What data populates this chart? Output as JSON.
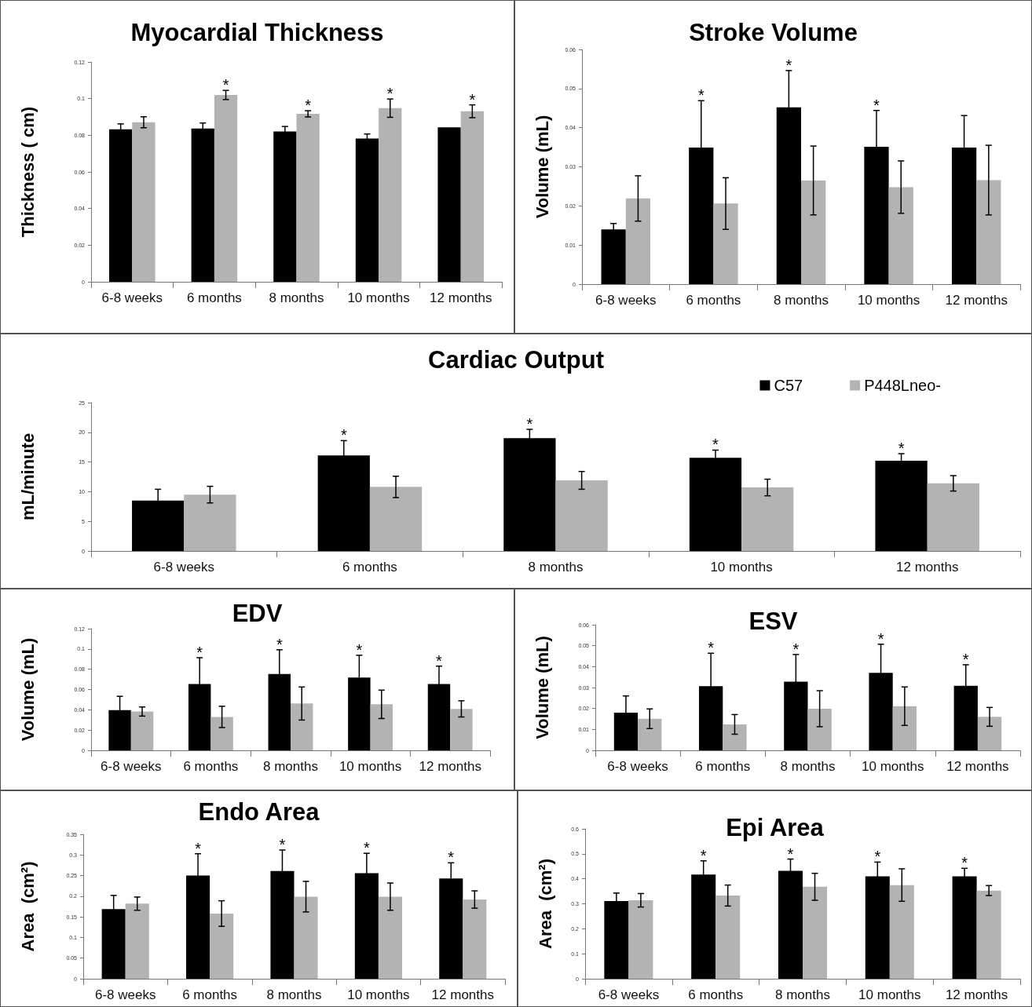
{
  "chart_data": [
    {
      "type": "bar",
      "title": "Myocardial Thickness",
      "ylabel": "Thickness ( cm)",
      "categories": [
        "6-8 weeks",
        "6 months",
        "8 months",
        "10 months",
        "12 months"
      ],
      "ylim": [
        0,
        0.12
      ],
      "yticks": [
        0,
        0.02,
        0.04,
        0.06,
        0.08,
        0.1,
        0.12
      ],
      "series": [
        {
          "color": "#000000",
          "values": [
            0.0832,
            0.0837,
            0.0821,
            0.0782,
            0.0843
          ],
          "errors": [
            0.003,
            0.003,
            0.0027,
            0.0025,
            null
          ]
        },
        {
          "color": "#b3b3b3",
          "values": [
            0.0871,
            0.102,
            0.0917,
            0.0948,
            0.0931
          ],
          "errors": [
            0.003,
            0.0025,
            0.0017,
            0.005,
            0.0035
          ]
        }
      ],
      "annotations": [
        {
          "text": "*",
          "x": "6 months",
          "y": 0.102
        },
        {
          "text": "*",
          "x": "8 months",
          "y": 0.0917
        },
        {
          "text": "*",
          "x": "10 months",
          "y": 0.0948
        },
        {
          "text": "*",
          "x": "12 months",
          "y": 0.0931
        }
      ]
    },
    {
      "type": "bar",
      "title": "Stroke Volume",
      "ylabel": "Volume (mL)",
      "categories": [
        "6-8 weeks",
        "6 months",
        "8 months",
        "10 months",
        "12 months"
      ],
      "ylim": [
        0,
        0.06
      ],
      "yticks": [
        0,
        0.01,
        0.02,
        0.03,
        0.04,
        0.05,
        0.06
      ],
      "series": [
        {
          "color": "#000000",
          "values": [
            0.014,
            0.0349,
            0.0452,
            0.0351,
            0.0349
          ],
          "errors": [
            0.0015,
            0.012,
            0.0094,
            0.0093,
            0.0082
          ]
        },
        {
          "color": "#b3b3b3",
          "values": [
            0.0219,
            0.0206,
            0.0265,
            0.0248,
            0.0266
          ],
          "errors": [
            0.0058,
            0.0066,
            0.0088,
            0.0067,
            0.0089
          ]
        }
      ],
      "annotations": [
        {
          "text": "*",
          "x": "6 months",
          "y": 0.0349
        },
        {
          "text": "*",
          "x": "8 months",
          "y": 0.0452
        },
        {
          "text": "*",
          "x": "10 months",
          "y": 0.0351
        }
      ]
    },
    {
      "type": "bar",
      "title": "Cardiac Output",
      "ylabel": "mL/minute",
      "categories": [
        "6-8 weeks",
        "6 months",
        "8 months",
        "10 months",
        "12 months"
      ],
      "ylim": [
        0,
        25
      ],
      "yticks": [
        0,
        5,
        10,
        15,
        20,
        25
      ],
      "legend": "top right",
      "series": [
        {
          "name": "C57",
          "color": "#000000",
          "values": [
            8.5,
            16.1,
            19.0,
            15.7,
            15.2
          ],
          "errors": [
            1.9,
            2.5,
            1.5,
            1.3,
            1.2
          ]
        },
        {
          "name": "P448Lneo-",
          "color": "#b3b3b3",
          "values": [
            9.5,
            10.8,
            11.9,
            10.7,
            11.4
          ],
          "errors": [
            1.4,
            1.8,
            1.5,
            1.4,
            1.3
          ]
        }
      ],
      "annotations": [
        {
          "text": "*",
          "x": "6 months",
          "y": 16.1
        },
        {
          "text": "*",
          "x": "8 months",
          "y": 19.0
        },
        {
          "text": "*",
          "x": "10 months",
          "y": 15.7
        },
        {
          "text": "*",
          "x": "12 months",
          "y": 15.2
        }
      ]
    },
    {
      "type": "bar",
      "title": "EDV",
      "ylabel": "Volume (mL)",
      "categories": [
        "6-8 weeks",
        "6 months",
        "8 months",
        "10 months",
        "12 months"
      ],
      "ylim": [
        0,
        0.12
      ],
      "yticks": [
        0,
        0.02,
        0.04,
        0.06,
        0.08,
        0.1,
        0.12
      ],
      "series": [
        {
          "color": "#000000",
          "values": [
            0.0396,
            0.0654,
            0.0752,
            0.0718,
            0.0654
          ],
          "errors": [
            0.0137,
            0.026,
            0.024,
            0.022,
            0.0177
          ]
        },
        {
          "color": "#b3b3b3",
          "values": [
            0.0383,
            0.033,
            0.0462,
            0.0454,
            0.0409
          ],
          "errors": [
            0.0045,
            0.0105,
            0.0163,
            0.014,
            0.008
          ]
        }
      ],
      "annotations": [
        {
          "text": "*",
          "x": "6 months",
          "y": 0.0654
        },
        {
          "text": "*",
          "x": "8 months",
          "y": 0.0752
        },
        {
          "text": "*",
          "x": "10 months",
          "y": 0.0718
        },
        {
          "text": "*",
          "x": "12 months",
          "y": 0.0654
        }
      ]
    },
    {
      "type": "bar",
      "title": "ESV",
      "ylabel": "Volume (mL)",
      "categories": [
        "6-8 weeks",
        "6 months",
        "8 months",
        "10 months",
        "12 months"
      ],
      "ylim": [
        0,
        0.06
      ],
      "yticks": [
        0,
        0.01,
        0.02,
        0.03,
        0.04,
        0.05,
        0.06
      ],
      "series": [
        {
          "color": "#000000",
          "values": [
            0.018,
            0.0307,
            0.0328,
            0.037,
            0.0308
          ],
          "errors": [
            0.008,
            0.0157,
            0.013,
            0.0137,
            0.0101
          ]
        },
        {
          "color": "#b3b3b3",
          "values": [
            0.0151,
            0.0124,
            0.0199,
            0.0211,
            0.016
          ],
          "errors": [
            0.0047,
            0.0047,
            0.0086,
            0.0092,
            0.0045
          ]
        }
      ],
      "annotations": [
        {
          "text": "*",
          "x": "6 months",
          "y": 0.0307
        },
        {
          "text": "*",
          "x": "8 months",
          "y": 0.0328
        },
        {
          "text": "*",
          "x": "10 months",
          "y": 0.037
        },
        {
          "text": "*",
          "x": "12 months",
          "y": 0.0308
        }
      ]
    },
    {
      "type": "bar",
      "title": "Endo Area",
      "ylabel": "Area  (cm²)",
      "categories": [
        "6-8 weeks",
        "6 months",
        "8 months",
        "10 months",
        "12 months"
      ],
      "ylim": [
        0,
        0.35
      ],
      "yticks": [
        0,
        0.05,
        0.1,
        0.15,
        0.2,
        0.25,
        0.3,
        0.35
      ],
      "series": [
        {
          "color": "#000000",
          "values": [
            0.169,
            0.25,
            0.261,
            0.256,
            0.243
          ],
          "errors": [
            0.033,
            0.053,
            0.051,
            0.048,
            0.038
          ]
        },
        {
          "color": "#b3b3b3",
          "values": [
            0.182,
            0.158,
            0.199,
            0.199,
            0.192
          ],
          "errors": [
            0.016,
            0.031,
            0.037,
            0.033,
            0.021
          ]
        }
      ],
      "annotations": [
        {
          "text": "*",
          "x": "6 months",
          "y": 0.25
        },
        {
          "text": "*",
          "x": "8 months",
          "y": 0.261
        },
        {
          "text": "*",
          "x": "10 months",
          "y": 0.256
        },
        {
          "text": "*",
          "x": "12 months",
          "y": 0.243
        }
      ]
    },
    {
      "type": "bar",
      "title": "Epi Area",
      "ylabel": "Area  (cm²)",
      "categories": [
        "6-8 weeks",
        "6 months",
        "8 months",
        "10 months",
        "12 months"
      ],
      "ylim": [
        0,
        0.6
      ],
      "yticks": [
        0,
        0.1,
        0.2,
        0.3,
        0.4,
        0.5,
        0.6
      ],
      "series": [
        {
          "color": "#000000",
          "values": [
            0.311,
            0.417,
            0.432,
            0.41,
            0.41
          ],
          "errors": [
            0.032,
            0.055,
            0.047,
            0.057,
            0.032
          ]
        },
        {
          "color": "#b3b3b3",
          "values": [
            0.314,
            0.333,
            0.368,
            0.375,
            0.353
          ],
          "errors": [
            0.027,
            0.042,
            0.054,
            0.065,
            0.02
          ]
        }
      ],
      "annotations": [
        {
          "text": "*",
          "x": "6 months",
          "y": 0.417
        },
        {
          "text": "*",
          "x": "8 months",
          "y": 0.432
        },
        {
          "text": "*",
          "x": "10 months",
          "y": 0.41
        },
        {
          "text": "*",
          "x": "12 months",
          "y": 0.41
        }
      ]
    }
  ]
}
